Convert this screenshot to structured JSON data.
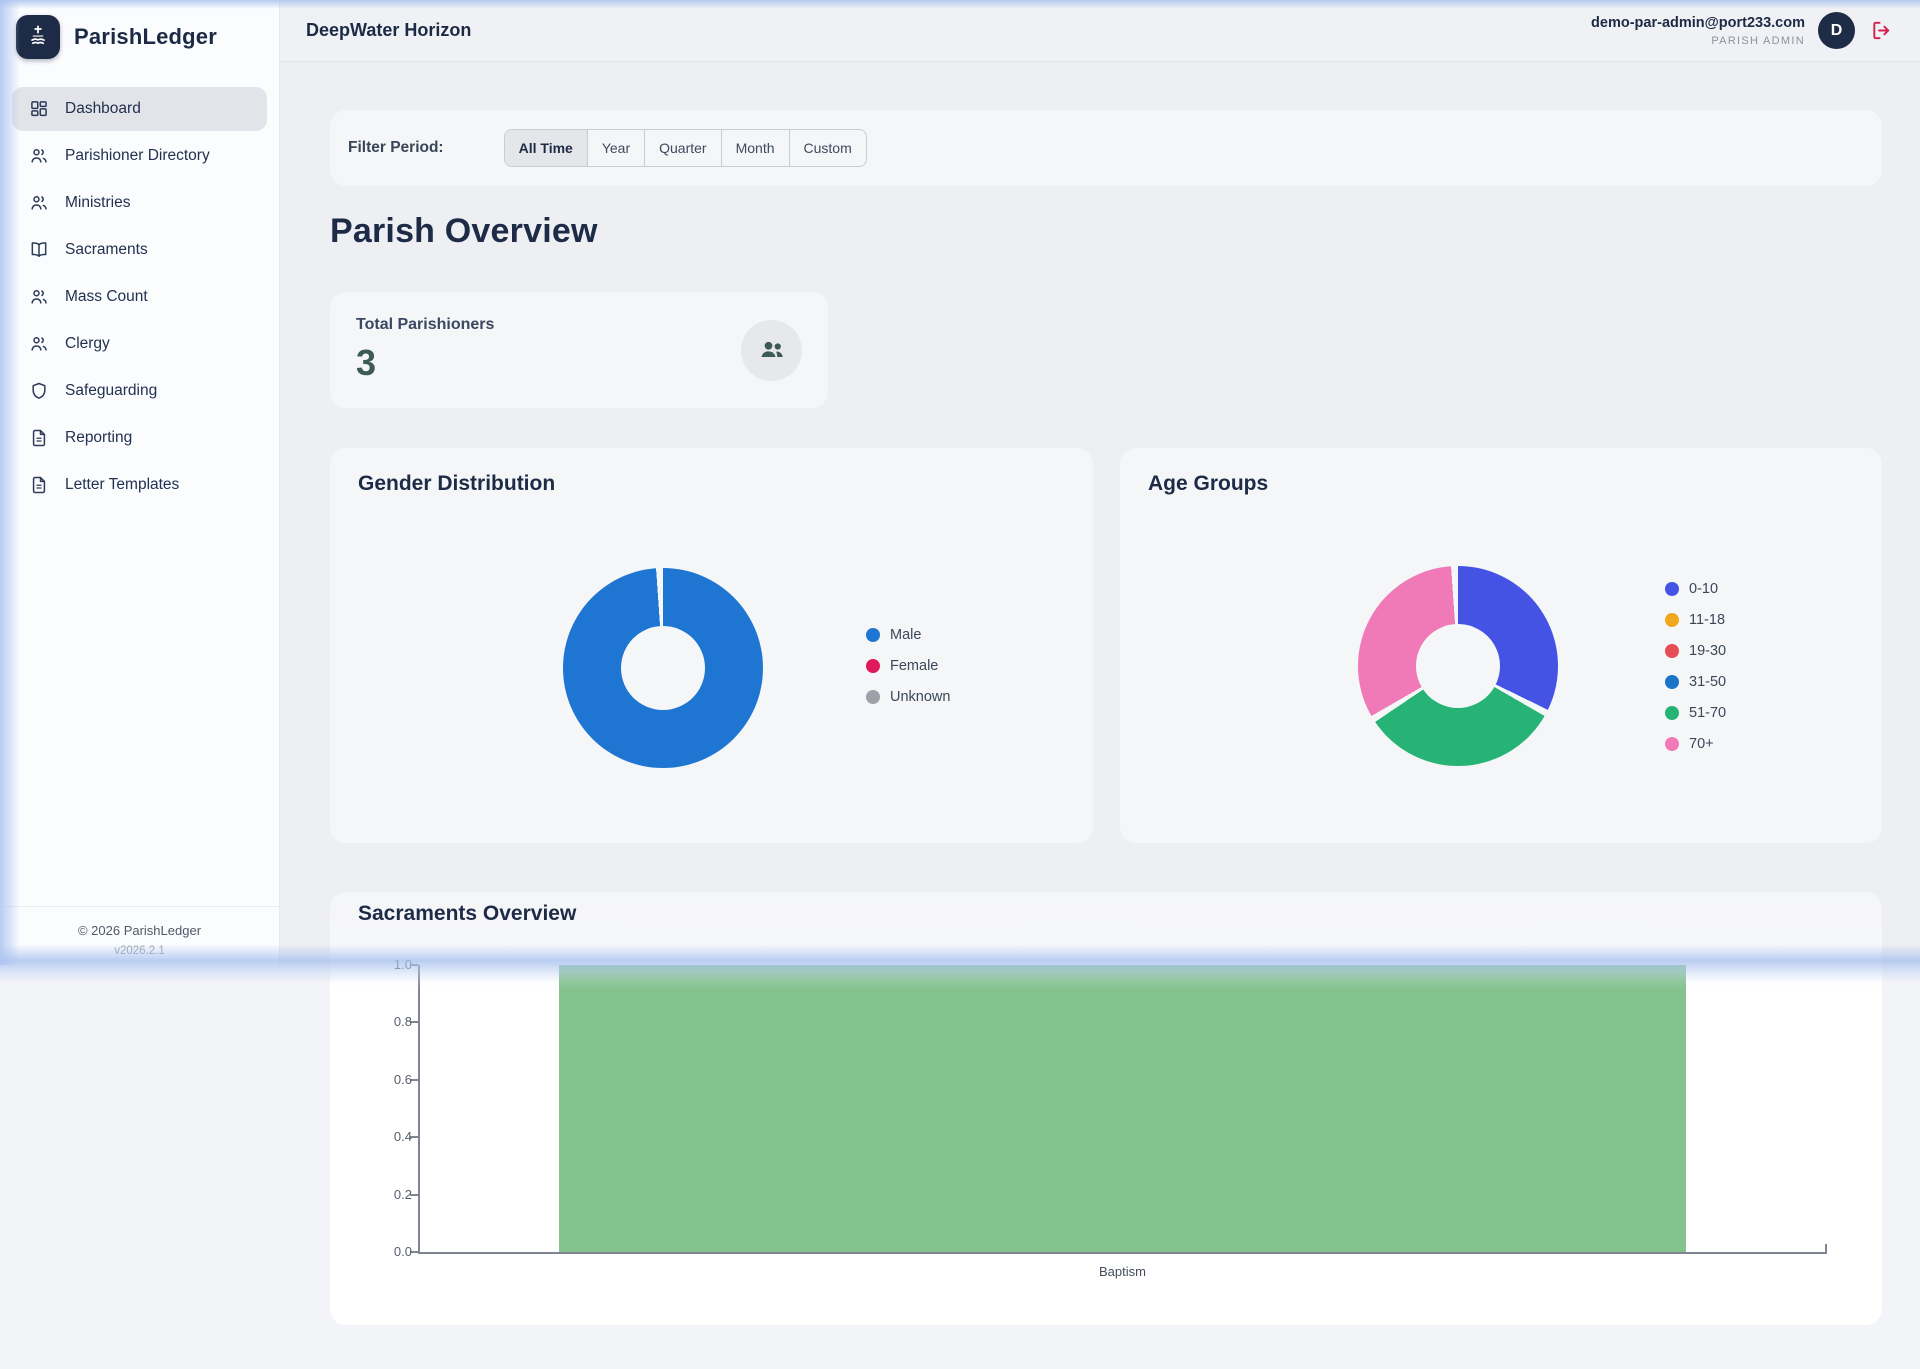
{
  "app": {
    "name": "ParishLedger",
    "copyright": "© 2026 ParishLedger",
    "version": "v2026.2.1"
  },
  "header": {
    "title": "DeepWater Horizon",
    "user_email": "demo-par-admin@port233.com",
    "user_role": "PARISH ADMIN",
    "avatar_initial": "D",
    "logout_color": "#d61f4e"
  },
  "sidebar": {
    "items": [
      {
        "label": "Dashboard",
        "icon": "dashboard-icon",
        "active": true
      },
      {
        "label": "Parishioner Directory",
        "icon": "users-icon",
        "active": false
      },
      {
        "label": "Ministries",
        "icon": "users-icon",
        "active": false
      },
      {
        "label": "Sacraments",
        "icon": "book-icon",
        "active": false
      },
      {
        "label": "Mass Count",
        "icon": "users-icon",
        "active": false
      },
      {
        "label": "Clergy",
        "icon": "users-icon",
        "active": false
      },
      {
        "label": "Safeguarding",
        "icon": "shield-icon",
        "active": false
      },
      {
        "label": "Reporting",
        "icon": "file-icon",
        "active": false
      },
      {
        "label": "Letter Templates",
        "icon": "file-icon",
        "active": false
      }
    ]
  },
  "filter": {
    "label": "Filter Period:",
    "options": [
      "All Time",
      "Year",
      "Quarter",
      "Month",
      "Custom"
    ],
    "selected": "All Time"
  },
  "page": {
    "title": "Parish Overview"
  },
  "stats": {
    "total_parishioners": {
      "label": "Total Parishioners",
      "value": "3",
      "icon": "people-icon"
    }
  },
  "chart_data": [
    {
      "type": "pie",
      "title": "Gender Distribution",
      "labels": [
        "Male",
        "Female",
        "Unknown"
      ],
      "values": [
        3,
        0,
        0
      ],
      "colors": [
        "#1e76d2",
        "#e0185c",
        "#9da2a8"
      ],
      "legend_position": "right",
      "donut": true
    },
    {
      "type": "pie",
      "title": "Age Groups",
      "labels": [
        "0-10",
        "11-18",
        "19-30",
        "31-50",
        "51-70",
        "70+"
      ],
      "values": [
        1,
        0,
        0,
        0,
        1,
        1
      ],
      "colors": [
        "#4453e4",
        "#f0a81e",
        "#e74d55",
        "#1a74c8",
        "#27b375",
        "#f07ab8"
      ],
      "legend_position": "right",
      "donut": true
    },
    {
      "type": "bar",
      "title": "Sacraments Overview",
      "categories": [
        "Baptism"
      ],
      "values": [
        1
      ],
      "ylim": [
        0,
        1
      ],
      "yticks": [
        0,
        0.2,
        0.4,
        0.6,
        0.8,
        1
      ],
      "bar_color": "#84c28e",
      "grid": false,
      "xlabel": "",
      "ylabel": ""
    }
  ]
}
